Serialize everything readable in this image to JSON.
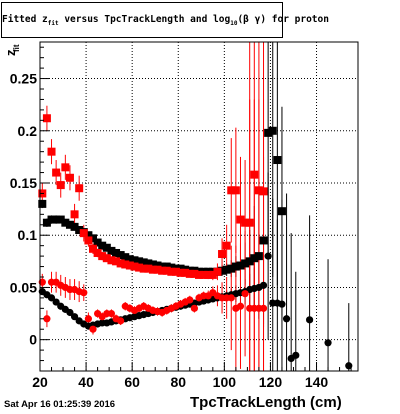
{
  "title": {
    "part1": "Fitted  z",
    "sub1": "fit",
    "part2": " versus TpcTrackLength and log",
    "sub2": "10",
    "part3": "(β γ) for proton"
  },
  "ylabel": {
    "main": "z",
    "sub": "fit"
  },
  "timestamp": "Sat Apr 16 01:25:39 2016",
  "chart_data": {
    "type": "scatter",
    "title": "Fitted z_fit versus TpcTrackLength and log10(β γ) for proton",
    "xlabel": "TpcTrackLength (cm)",
    "ylabel": "z_fit",
    "xlim": [
      20,
      158
    ],
    "ylim": [
      -0.03,
      0.285
    ],
    "xticks": [
      20,
      40,
      60,
      80,
      100,
      120,
      140
    ],
    "yticks": [
      0,
      0.05,
      0.1,
      0.15,
      0.2,
      0.25
    ],
    "ytick_labels": [
      "0",
      "0.05",
      "0.1",
      "0.15",
      "0.2",
      "0.25"
    ],
    "grid": true,
    "series": [
      {
        "color": "#000000",
        "marker": "square",
        "role": "mean",
        "x": [
          21,
          23,
          25,
          27,
          29,
          31,
          33,
          35,
          37,
          39,
          41,
          43,
          45,
          47,
          49,
          51,
          53,
          55,
          57,
          59,
          61,
          63,
          65,
          67,
          69,
          71,
          73,
          75,
          77,
          79,
          81,
          83,
          85,
          87,
          89,
          91,
          93,
          95,
          97,
          99,
          101,
          103,
          105,
          107,
          109,
          111,
          113,
          115,
          117,
          119,
          121,
          123,
          125
        ],
        "y": [
          0.13,
          0.112,
          0.115,
          0.115,
          0.115,
          0.112,
          0.11,
          0.108,
          0.105,
          0.103,
          0.1,
          0.097,
          0.093,
          0.09,
          0.088,
          0.085,
          0.083,
          0.081,
          0.079,
          0.077,
          0.076,
          0.075,
          0.074,
          0.073,
          0.072,
          0.071,
          0.07,
          0.07,
          0.069,
          0.068,
          0.068,
          0.067,
          0.066,
          0.066,
          0.065,
          0.065,
          0.065,
          0.065,
          0.065,
          0.066,
          0.067,
          0.068,
          0.07,
          0.071,
          0.073,
          0.075,
          0.078,
          0.08,
          0.095,
          0.198,
          0.2,
          0.172,
          0.123
        ],
        "yerr": [
          0.004,
          0.004,
          0.004,
          0.004,
          0.003,
          0.003,
          0.003,
          0.003,
          0.003,
          0.003,
          0.003,
          0.003,
          0.003,
          0.003,
          0.003,
          0.003,
          0.003,
          0.003,
          0.003,
          0.003,
          0.003,
          0.003,
          0.003,
          0.003,
          0.003,
          0.003,
          0.003,
          0.003,
          0.003,
          0.003,
          0.003,
          0.003,
          0.003,
          0.003,
          0.003,
          0.003,
          0.003,
          0.003,
          0.004,
          0.005,
          0.006,
          0.008,
          0.01,
          0.015,
          0.02,
          0.03,
          0.05,
          0.06,
          0.08,
          0.12,
          0.14,
          0.12,
          0.1
        ]
      },
      {
        "color": "#000000",
        "marker": "circle",
        "role": "sigma",
        "x": [
          21,
          23,
          25,
          27,
          29,
          31,
          33,
          35,
          37,
          39,
          41,
          43,
          45,
          47,
          49,
          51,
          53,
          55,
          57,
          59,
          61,
          63,
          65,
          67,
          69,
          71,
          73,
          75,
          77,
          79,
          81,
          83,
          85,
          87,
          89,
          91,
          93,
          95,
          97,
          99,
          101,
          103,
          105,
          107,
          109,
          111,
          113,
          115,
          117,
          119,
          121,
          123,
          125,
          127,
          129,
          131,
          137,
          145,
          154
        ],
        "y": [
          0.046,
          0.043,
          0.04,
          0.036,
          0.032,
          0.029,
          0.026,
          0.022,
          0.018,
          0.015,
          0.013,
          0.014,
          0.015,
          0.016,
          0.016,
          0.017,
          0.018,
          0.019,
          0.02,
          0.021,
          0.022,
          0.023,
          0.024,
          0.025,
          0.026,
          0.027,
          0.028,
          0.029,
          0.03,
          0.031,
          0.032,
          0.033,
          0.034,
          0.035,
          0.036,
          0.037,
          0.038,
          0.039,
          0.04,
          0.041,
          0.042,
          0.043,
          0.044,
          0.045,
          0.046,
          0.048,
          0.049,
          0.05,
          0.052,
          0.08,
          0.035,
          0.035,
          0.034,
          0.02,
          -0.018,
          -0.015,
          0.019,
          -0.003,
          -0.025
        ],
        "yerr": [
          0.003,
          0.003,
          0.003,
          0.003,
          0.003,
          0.003,
          0.003,
          0.003,
          0.003,
          0.003,
          0.003,
          0.003,
          0.003,
          0.003,
          0.003,
          0.003,
          0.003,
          0.003,
          0.003,
          0.003,
          0.003,
          0.003,
          0.003,
          0.003,
          0.003,
          0.003,
          0.003,
          0.003,
          0.003,
          0.003,
          0.003,
          0.003,
          0.003,
          0.003,
          0.003,
          0.003,
          0.003,
          0.003,
          0.004,
          0.004,
          0.005,
          0.006,
          0.008,
          0.01,
          0.012,
          0.015,
          0.02,
          0.03,
          0.04,
          0.08,
          0.1,
          0.08,
          0.1,
          0.12,
          0.12,
          0.08,
          0.1,
          0.08,
          0.06
        ]
      },
      {
        "color": "#ff0000",
        "marker": "square",
        "role": "mean",
        "x": [
          21,
          23,
          25,
          27,
          29,
          31,
          33,
          35,
          37,
          39,
          41,
          43,
          45,
          47,
          49,
          51,
          53,
          55,
          57,
          59,
          61,
          63,
          65,
          67,
          69,
          71,
          73,
          75,
          77,
          79,
          81,
          83,
          85,
          87,
          89,
          91,
          93,
          95,
          97,
          99,
          101,
          103,
          105,
          107,
          109,
          111,
          113,
          115,
          117
        ],
        "y": [
          0.14,
          0.212,
          0.18,
          0.16,
          0.148,
          0.165,
          0.155,
          0.12,
          0.145,
          0.102,
          0.095,
          0.087,
          0.083,
          0.08,
          0.078,
          0.076,
          0.075,
          0.073,
          0.072,
          0.071,
          0.07,
          0.069,
          0.068,
          0.068,
          0.067,
          0.067,
          0.066,
          0.066,
          0.065,
          0.065,
          0.064,
          0.064,
          0.063,
          0.063,
          0.062,
          0.062,
          0.062,
          0.062,
          0.065,
          0.082,
          0.09,
          0.143,
          0.143,
          0.115,
          0.112,
          0.112,
          0.158,
          0.143,
          0.142
        ],
        "yerr": [
          0.01,
          0.012,
          0.012,
          0.012,
          0.012,
          0.012,
          0.012,
          0.01,
          0.012,
          0.008,
          0.006,
          0.005,
          0.004,
          0.004,
          0.003,
          0.003,
          0.003,
          0.003,
          0.003,
          0.003,
          0.003,
          0.003,
          0.003,
          0.003,
          0.003,
          0.003,
          0.003,
          0.003,
          0.003,
          0.003,
          0.003,
          0.003,
          0.003,
          0.003,
          0.003,
          0.003,
          0.004,
          0.005,
          0.008,
          0.015,
          0.02,
          0.05,
          0.06,
          0.06,
          0.06,
          0.2,
          0.2,
          0.2,
          0.2
        ]
      },
      {
        "color": "#ff0000",
        "marker": "circle",
        "role": "sigma",
        "x": [
          21,
          23,
          25,
          27,
          29,
          31,
          33,
          35,
          37,
          39,
          41,
          43,
          45,
          47,
          49,
          51,
          53,
          55,
          57,
          59,
          61,
          63,
          65,
          67,
          69,
          71,
          73,
          75,
          77,
          79,
          81,
          83,
          85,
          87,
          89,
          91,
          93,
          95,
          97,
          99,
          101,
          103,
          105,
          107,
          109,
          111,
          113,
          115,
          117
        ],
        "y": [
          0.055,
          0.02,
          0.055,
          0.055,
          0.052,
          0.05,
          0.048,
          0.048,
          0.046,
          0.045,
          0.02,
          0.01,
          0.025,
          0.022,
          0.025,
          0.025,
          0.02,
          0.018,
          0.032,
          0.03,
          0.028,
          0.03,
          0.032,
          0.03,
          0.028,
          0.027,
          0.026,
          0.028,
          0.03,
          0.032,
          0.034,
          0.036,
          0.038,
          0.03,
          0.04,
          0.042,
          0.042,
          0.045,
          0.042,
          0.04,
          0.04,
          0.04,
          0.03,
          0.032,
          0.044,
          0.03,
          0.03,
          0.03,
          0.03
        ],
        "yerr": [
          0.008,
          0.008,
          0.01,
          0.01,
          0.01,
          0.01,
          0.01,
          0.01,
          0.01,
          0.008,
          0.006,
          0.005,
          0.004,
          0.004,
          0.004,
          0.004,
          0.004,
          0.004,
          0.004,
          0.004,
          0.004,
          0.004,
          0.004,
          0.004,
          0.004,
          0.004,
          0.004,
          0.004,
          0.004,
          0.004,
          0.004,
          0.004,
          0.004,
          0.004,
          0.004,
          0.004,
          0.005,
          0.006,
          0.01,
          0.015,
          0.02,
          0.05,
          0.06,
          0.06,
          0.06,
          0.2,
          0.2,
          0.2,
          0.2
        ]
      }
    ]
  }
}
